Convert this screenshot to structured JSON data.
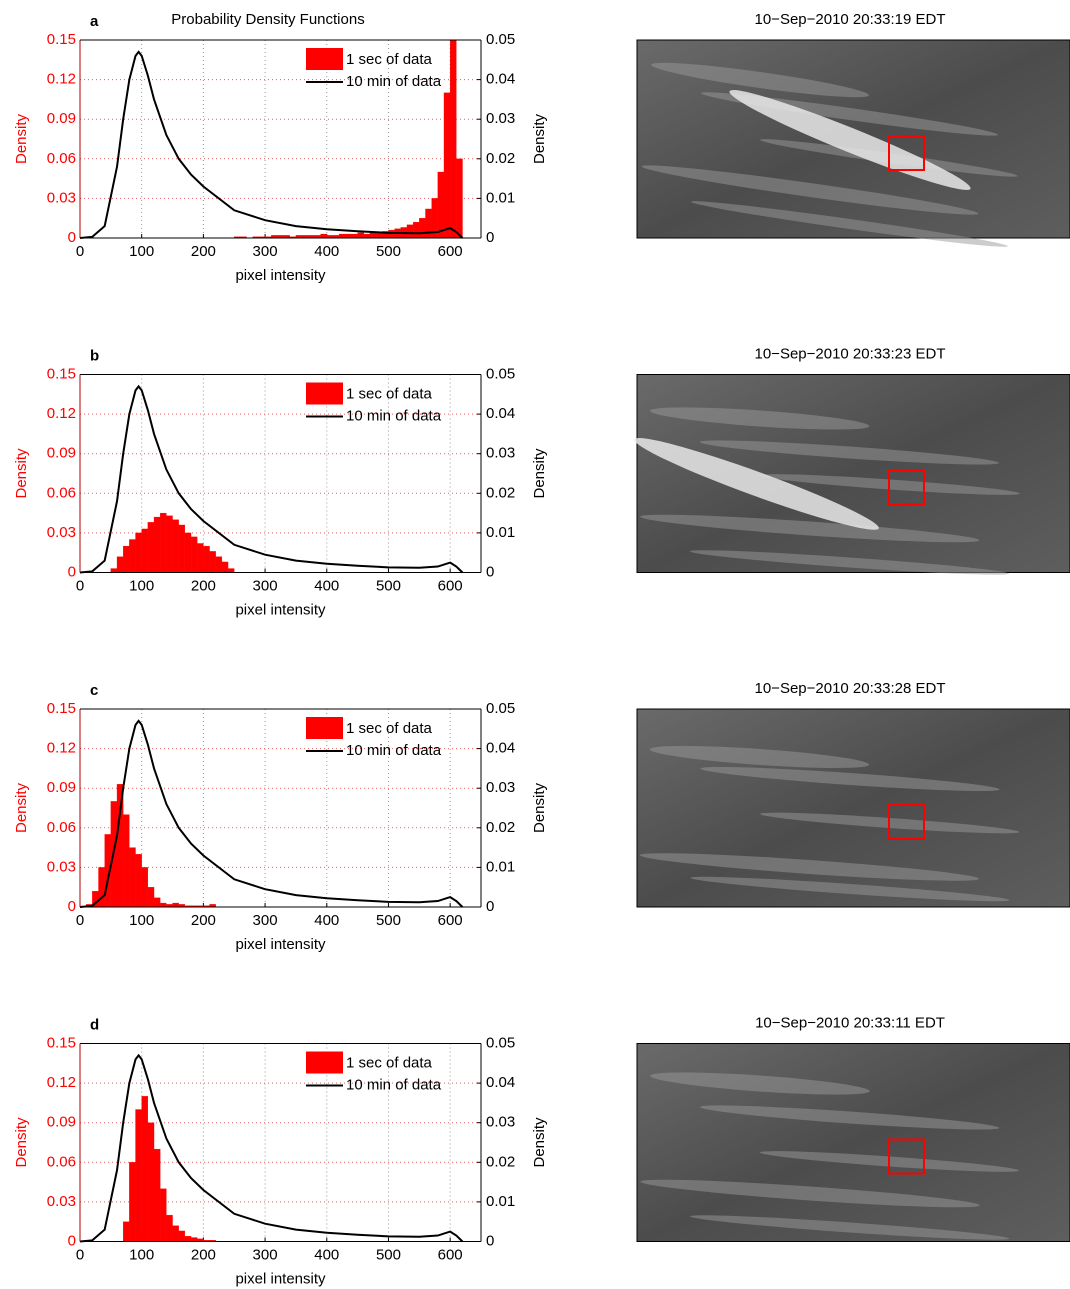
{
  "chart_data": [
    {
      "type": "histogram",
      "panel_label": "a",
      "title": "Probability Density Functions",
      "ylabel": "Density",
      "y2label": "Density",
      "xlabel": "pixel intensity",
      "xlim": [
        0,
        650
      ],
      "xticks": [
        0,
        100,
        200,
        300,
        400,
        500,
        600
      ],
      "ylim": [
        0,
        0.15
      ],
      "yticks": [
        0,
        0.03,
        0.06,
        0.09,
        0.12,
        0.15
      ],
      "y2lim": [
        0,
        0.05
      ],
      "y2ticks": [
        0,
        0.01,
        0.02,
        0.03,
        0.04,
        0.05
      ],
      "grid": true,
      "legend": "upper right",
      "bins": [
        250,
        260,
        270,
        280,
        290,
        300,
        310,
        320,
        330,
        340,
        350,
        360,
        370,
        380,
        390,
        400,
        410,
        420,
        430,
        440,
        450,
        460,
        470,
        480,
        490,
        500,
        510,
        520,
        530,
        540,
        550,
        560,
        570,
        580,
        590,
        600,
        610,
        620
      ],
      "series": [
        {
          "name": "1 sec of data",
          "color": "#ff0000",
          "values": [
            0.001,
            0.001,
            0,
            0.001,
            0.001,
            0.001,
            0.002,
            0.002,
            0.002,
            0.001,
            0.002,
            0.002,
            0.002,
            0.002,
            0.003,
            0.002,
            0.002,
            0.003,
            0.003,
            0.003,
            0.004,
            0.003,
            0.004,
            0.004,
            0.005,
            0.006,
            0.007,
            0.008,
            0.01,
            0.012,
            0.015,
            0.022,
            0.03,
            0.05,
            0.11,
            0.15,
            0.06
          ]
        },
        {
          "name": "10 min of data",
          "color": "#000000",
          "axis": "y2",
          "x": [
            0,
            20,
            40,
            60,
            70,
            80,
            90,
            95,
            100,
            110,
            120,
            140,
            160,
            180,
            200,
            250,
            300,
            350,
            400,
            450,
            500,
            550,
            580,
            600,
            610,
            620
          ],
          "values": [
            0,
            0.0003,
            0.003,
            0.018,
            0.03,
            0.04,
            0.046,
            0.047,
            0.046,
            0.041,
            0.035,
            0.026,
            0.02,
            0.016,
            0.013,
            0.007,
            0.0045,
            0.003,
            0.0022,
            0.0017,
            0.0013,
            0.0012,
            0.0015,
            0.0025,
            0.0015,
            0
          ]
        }
      ]
    },
    {
      "type": "histogram",
      "panel_label": "b",
      "ylabel": "Density",
      "y2label": "Density",
      "xlabel": "pixel intensity",
      "xlim": [
        0,
        650
      ],
      "xticks": [
        0,
        100,
        200,
        300,
        400,
        500,
        600
      ],
      "ylim": [
        0,
        0.15
      ],
      "yticks": [
        0,
        0.03,
        0.06,
        0.09,
        0.12,
        0.15
      ],
      "y2lim": [
        0,
        0.05
      ],
      "y2ticks": [
        0,
        0.01,
        0.02,
        0.03,
        0.04,
        0.05
      ],
      "grid": true,
      "legend": "upper right",
      "bins": [
        50,
        60,
        70,
        80,
        90,
        100,
        110,
        120,
        130,
        140,
        150,
        160,
        170,
        180,
        190,
        200,
        210,
        220,
        230,
        240,
        250
      ],
      "series": [
        {
          "name": "1 sec of data",
          "color": "#ff0000",
          "values": [
            0.003,
            0.012,
            0.02,
            0.025,
            0.03,
            0.033,
            0.038,
            0.042,
            0.045,
            0.043,
            0.04,
            0.036,
            0.03,
            0.027,
            0.022,
            0.02,
            0.016,
            0.012,
            0.008,
            0.003
          ]
        },
        {
          "name": "10 min of data",
          "color": "#000000",
          "axis": "y2",
          "x": [
            0,
            20,
            40,
            60,
            70,
            80,
            90,
            95,
            100,
            110,
            120,
            140,
            160,
            180,
            200,
            250,
            300,
            350,
            400,
            450,
            500,
            550,
            580,
            600,
            610,
            620
          ],
          "values": [
            0,
            0.0003,
            0.003,
            0.018,
            0.03,
            0.04,
            0.046,
            0.047,
            0.046,
            0.041,
            0.035,
            0.026,
            0.02,
            0.016,
            0.013,
            0.007,
            0.0045,
            0.003,
            0.0022,
            0.0017,
            0.0013,
            0.0012,
            0.0015,
            0.0025,
            0.0015,
            0
          ]
        }
      ]
    },
    {
      "type": "histogram",
      "panel_label": "c",
      "ylabel": "Density",
      "y2label": "Density",
      "xlabel": "pixel intensity",
      "xlim": [
        0,
        650
      ],
      "xticks": [
        0,
        100,
        200,
        300,
        400,
        500,
        600
      ],
      "ylim": [
        0,
        0.15
      ],
      "yticks": [
        0,
        0.03,
        0.06,
        0.09,
        0.12,
        0.15
      ],
      "y2lim": [
        0,
        0.05
      ],
      "y2ticks": [
        0,
        0.01,
        0.02,
        0.03,
        0.04,
        0.05
      ],
      "grid": true,
      "legend": "upper right",
      "bins": [
        10,
        20,
        30,
        40,
        50,
        60,
        70,
        80,
        90,
        100,
        110,
        120,
        130,
        140,
        150,
        160,
        170,
        180,
        190,
        200,
        210,
        220
      ],
      "series": [
        {
          "name": "1 sec of data",
          "color": "#ff0000",
          "values": [
            0.002,
            0.012,
            0.03,
            0.055,
            0.08,
            0.093,
            0.07,
            0.045,
            0.04,
            0.03,
            0.015,
            0.007,
            0.003,
            0.002,
            0.003,
            0.002,
            0.001,
            0.001,
            0.001,
            0.001,
            0.002
          ]
        },
        {
          "name": "10 min of data",
          "color": "#000000",
          "axis": "y2",
          "x": [
            0,
            20,
            40,
            60,
            70,
            80,
            90,
            95,
            100,
            110,
            120,
            140,
            160,
            180,
            200,
            250,
            300,
            350,
            400,
            450,
            500,
            550,
            580,
            600,
            610,
            620
          ],
          "values": [
            0,
            0.0003,
            0.003,
            0.018,
            0.03,
            0.04,
            0.046,
            0.047,
            0.046,
            0.041,
            0.035,
            0.026,
            0.02,
            0.016,
            0.013,
            0.007,
            0.0045,
            0.003,
            0.0022,
            0.0017,
            0.0013,
            0.0012,
            0.0015,
            0.0025,
            0.0015,
            0
          ]
        }
      ]
    },
    {
      "type": "histogram",
      "panel_label": "d",
      "ylabel": "Density",
      "y2label": "Density",
      "xlabel": "pixel intensity",
      "xlim": [
        0,
        650
      ],
      "xticks": [
        0,
        100,
        200,
        300,
        400,
        500,
        600
      ],
      "ylim": [
        0,
        0.15
      ],
      "yticks": [
        0,
        0.03,
        0.06,
        0.09,
        0.12,
        0.15
      ],
      "y2lim": [
        0,
        0.05
      ],
      "y2ticks": [
        0,
        0.01,
        0.02,
        0.03,
        0.04,
        0.05
      ],
      "grid": true,
      "legend": "upper right",
      "bins": [
        70,
        80,
        90,
        100,
        110,
        120,
        130,
        140,
        150,
        160,
        170,
        180,
        190,
        200,
        210,
        220
      ],
      "series": [
        {
          "name": "1 sec of data",
          "color": "#ff0000",
          "values": [
            0.015,
            0.06,
            0.1,
            0.11,
            0.09,
            0.07,
            0.04,
            0.02,
            0.012,
            0.008,
            0.004,
            0.003,
            0.002,
            0.001,
            0.001
          ]
        },
        {
          "name": "10 min of data",
          "color": "#000000",
          "axis": "y2",
          "x": [
            0,
            20,
            40,
            60,
            70,
            80,
            90,
            95,
            100,
            110,
            120,
            140,
            160,
            180,
            200,
            250,
            300,
            350,
            400,
            450,
            500,
            550,
            580,
            600,
            610,
            620
          ],
          "values": [
            0,
            0.0003,
            0.003,
            0.018,
            0.03,
            0.04,
            0.046,
            0.047,
            0.046,
            0.041,
            0.035,
            0.026,
            0.02,
            0.016,
            0.013,
            0.007,
            0.0045,
            0.003,
            0.0022,
            0.0017,
            0.0013,
            0.0012,
            0.0015,
            0.0025,
            0.0015,
            0
          ]
        }
      ]
    }
  ],
  "images": [
    {
      "title": "10−Sep−2010 20:33:19 EDT"
    },
    {
      "title": "10−Sep−2010 20:33:23 EDT"
    },
    {
      "title": "10−Sep−2010 20:33:28 EDT"
    },
    {
      "title": "10−Sep−2010 20:33:11 EDT"
    }
  ]
}
